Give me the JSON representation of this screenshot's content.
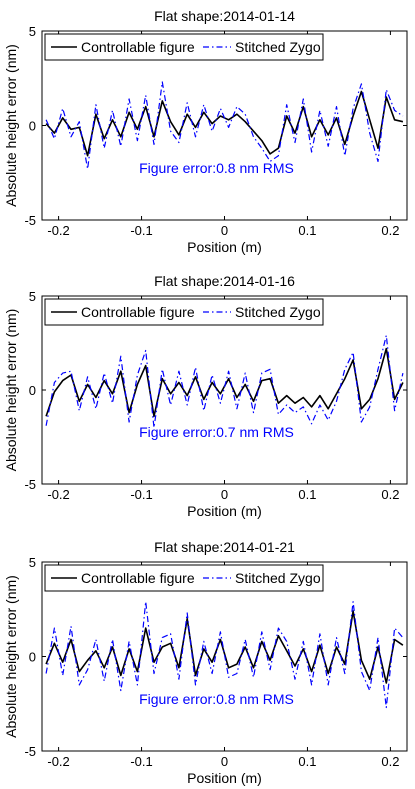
{
  "chart_data": [
    {
      "type": "line",
      "title": "Flat shape:2014-01-14",
      "xlabel": "Position (m)",
      "ylabel": "Absolute height error (nm)",
      "xlim": [
        -0.22,
        0.22
      ],
      "ylim": [
        -5,
        5
      ],
      "xticks": [
        "-0.2",
        "-0.1",
        "0",
        "0.1",
        "0.2"
      ],
      "yticks": [
        "5",
        "0",
        "-5"
      ],
      "legend_position": "top",
      "annotation": "Figure error:0.8 nm RMS",
      "annotation_color": "#0000ff",
      "x": [
        -0.215,
        -0.205,
        -0.195,
        -0.185,
        -0.175,
        -0.165,
        -0.155,
        -0.145,
        -0.135,
        -0.125,
        -0.115,
        -0.105,
        -0.095,
        -0.085,
        -0.075,
        -0.065,
        -0.055,
        -0.045,
        -0.035,
        -0.025,
        -0.015,
        -0.005,
        0.005,
        0.015,
        0.025,
        0.035,
        0.045,
        0.055,
        0.065,
        0.075,
        0.085,
        0.095,
        0.105,
        0.115,
        0.125,
        0.135,
        0.145,
        0.155,
        0.165,
        0.175,
        0.185,
        0.195,
        0.205,
        0.215
      ],
      "series": [
        {
          "name": "Controllable figure",
          "color": "#000000",
          "style": "solid",
          "values": [
            0.1,
            -0.4,
            0.4,
            -0.2,
            -0.1,
            -1.6,
            0.6,
            -0.7,
            0.3,
            -0.6,
            0.7,
            -0.2,
            1.0,
            -0.6,
            1.3,
            0.2,
            -0.5,
            0.6,
            -0.1,
            0.7,
            0.1,
            0.5,
            0.3,
            0.6,
            0.2,
            -0.3,
            -0.8,
            -1.5,
            -1.2,
            0.5,
            -0.4,
            1.0,
            -0.6,
            0.3,
            -0.5,
            0.4,
            -1.0,
            0.5,
            1.8,
            0.3,
            -1.2,
            1.5,
            0.3,
            0.2
          ]
        },
        {
          "name": "Stitched Zygo",
          "color": "#0000ff",
          "style": "dashdot",
          "values": [
            0.3,
            -0.7,
            0.9,
            -0.6,
            0.2,
            -2.3,
            1.1,
            -1.2,
            0.8,
            -1.1,
            1.4,
            -0.8,
            1.6,
            -1.0,
            2.3,
            -0.3,
            -0.9,
            1.2,
            -0.6,
            1.1,
            -0.3,
            0.9,
            -0.1,
            1.0,
            0.6,
            -0.6,
            -1.2,
            -1.9,
            -1.6,
            1.1,
            -0.9,
            1.4,
            -1.4,
            0.8,
            -1.1,
            1.0,
            -1.6,
            0.9,
            2.2,
            -0.4,
            -1.9,
            1.9,
            0.8,
            0.5
          ]
        }
      ]
    },
    {
      "type": "line",
      "title": "Flat shape:2014-01-16",
      "xlabel": "Position (m)",
      "ylabel": "Absolute height error (nm)",
      "xlim": [
        -0.22,
        0.22
      ],
      "ylim": [
        -5,
        5
      ],
      "xticks": [
        "-0.2",
        "-0.1",
        "0",
        "0.1",
        "0.2"
      ],
      "yticks": [
        "5",
        "0",
        "-5"
      ],
      "legend_position": "top",
      "annotation": "Figure error:0.7 nm RMS",
      "annotation_color": "#0000ff",
      "x": [
        -0.215,
        -0.205,
        -0.195,
        -0.185,
        -0.175,
        -0.165,
        -0.155,
        -0.145,
        -0.135,
        -0.125,
        -0.115,
        -0.105,
        -0.095,
        -0.085,
        -0.075,
        -0.065,
        -0.055,
        -0.045,
        -0.035,
        -0.025,
        -0.015,
        -0.005,
        0.005,
        0.015,
        0.025,
        0.035,
        0.045,
        0.055,
        0.065,
        0.075,
        0.085,
        0.095,
        0.105,
        0.115,
        0.125,
        0.135,
        0.145,
        0.155,
        0.165,
        0.175,
        0.185,
        0.195,
        0.205,
        0.215
      ],
      "series": [
        {
          "name": "Controllable figure",
          "color": "#000000",
          "style": "solid",
          "values": [
            -1.4,
            -0.1,
            0.5,
            0.8,
            -0.6,
            0.3,
            -0.4,
            0.5,
            -0.2,
            1.0,
            -1.2,
            0.3,
            1.3,
            -1.4,
            0.6,
            -0.2,
            0.4,
            -0.3,
            0.7,
            -0.5,
            0.4,
            -0.2,
            0.6,
            -0.4,
            0.3,
            -0.6,
            0.5,
            0.6,
            -0.7,
            -0.3,
            -0.7,
            -0.4,
            -0.9,
            -0.3,
            -1.0,
            -0.2,
            0.6,
            1.6,
            -1.0,
            -0.5,
            0.6,
            2.2,
            -0.5,
            0.4
          ]
        },
        {
          "name": "Stitched Zygo",
          "color": "#0000ff",
          "style": "dashdot",
          "values": [
            -1.9,
            0.4,
            0.9,
            1.0,
            -1.1,
            0.7,
            -1.0,
            0.9,
            -0.7,
            1.8,
            -1.7,
            0.8,
            2.1,
            -2.0,
            1.1,
            -0.8,
            1.0,
            -0.8,
            1.2,
            -1.1,
            0.8,
            -0.7,
            1.0,
            -1.0,
            0.9,
            -1.2,
            0.9,
            1.1,
            -1.3,
            -0.8,
            -1.2,
            -0.9,
            -1.8,
            -0.8,
            -1.6,
            -0.6,
            1.1,
            2.0,
            -1.7,
            -0.9,
            1.1,
            2.9,
            -1.1,
            0.9
          ]
        }
      ]
    },
    {
      "type": "line",
      "title": "Flat shape:2014-01-21",
      "xlabel": "Position (m)",
      "ylabel": "Absolute height error (nm)",
      "xlim": [
        -0.22,
        0.22
      ],
      "ylim": [
        -5,
        5
      ],
      "xticks": [
        "-0.2",
        "-0.1",
        "0",
        "0.1",
        "0.2"
      ],
      "yticks": [
        "5",
        "0",
        "-5"
      ],
      "legend_position": "top",
      "annotation": "Figure error:0.8 nm RMS",
      "annotation_color": "#0000ff",
      "x": [
        -0.215,
        -0.205,
        -0.195,
        -0.185,
        -0.175,
        -0.165,
        -0.155,
        -0.145,
        -0.135,
        -0.125,
        -0.115,
        -0.105,
        -0.095,
        -0.085,
        -0.075,
        -0.065,
        -0.055,
        -0.045,
        -0.035,
        -0.025,
        -0.015,
        -0.005,
        0.005,
        0.015,
        0.025,
        0.035,
        0.045,
        0.055,
        0.065,
        0.075,
        0.085,
        0.095,
        0.105,
        0.115,
        0.125,
        0.135,
        0.145,
        0.155,
        0.165,
        0.175,
        0.185,
        0.195,
        0.205,
        0.215
      ],
      "series": [
        {
          "name": "Controllable figure",
          "color": "#000000",
          "style": "solid",
          "values": [
            -0.4,
            0.7,
            -0.3,
            0.9,
            -0.8,
            -0.2,
            0.3,
            -0.6,
            0.5,
            -1.0,
            0.4,
            -0.8,
            1.5,
            -0.3,
            0.5,
            0.7,
            -0.6,
            2.0,
            -1.0,
            0.4,
            -0.3,
            0.9,
            -0.6,
            -0.4,
            0.5,
            -0.6,
            0.8,
            -0.2,
            1.1,
            0.3,
            -0.5,
            0.4,
            -0.8,
            0.6,
            -0.9,
            0.5,
            -0.4,
            2.4,
            -0.2,
            -1.2,
            0.5,
            -1.4,
            0.9,
            0.6
          ]
        },
        {
          "name": "Stitched Zygo",
          "color": "#0000ff",
          "style": "dashdot",
          "values": [
            -0.9,
            1.5,
            -1.0,
            1.6,
            -1.5,
            -0.7,
            0.9,
            -1.3,
            0.9,
            -1.8,
            0.8,
            -1.5,
            2.9,
            -0.9,
            1.0,
            1.2,
            -1.2,
            2.3,
            -1.5,
            0.8,
            -0.9,
            1.3,
            -1.1,
            -0.9,
            0.9,
            -1.1,
            1.3,
            -0.7,
            1.5,
            0.8,
            -1.2,
            0.8,
            -1.5,
            1.2,
            -1.5,
            1.0,
            -0.9,
            2.9,
            -0.8,
            -1.8,
            1.0,
            -2.7,
            1.5,
            1.0
          ]
        }
      ]
    }
  ]
}
